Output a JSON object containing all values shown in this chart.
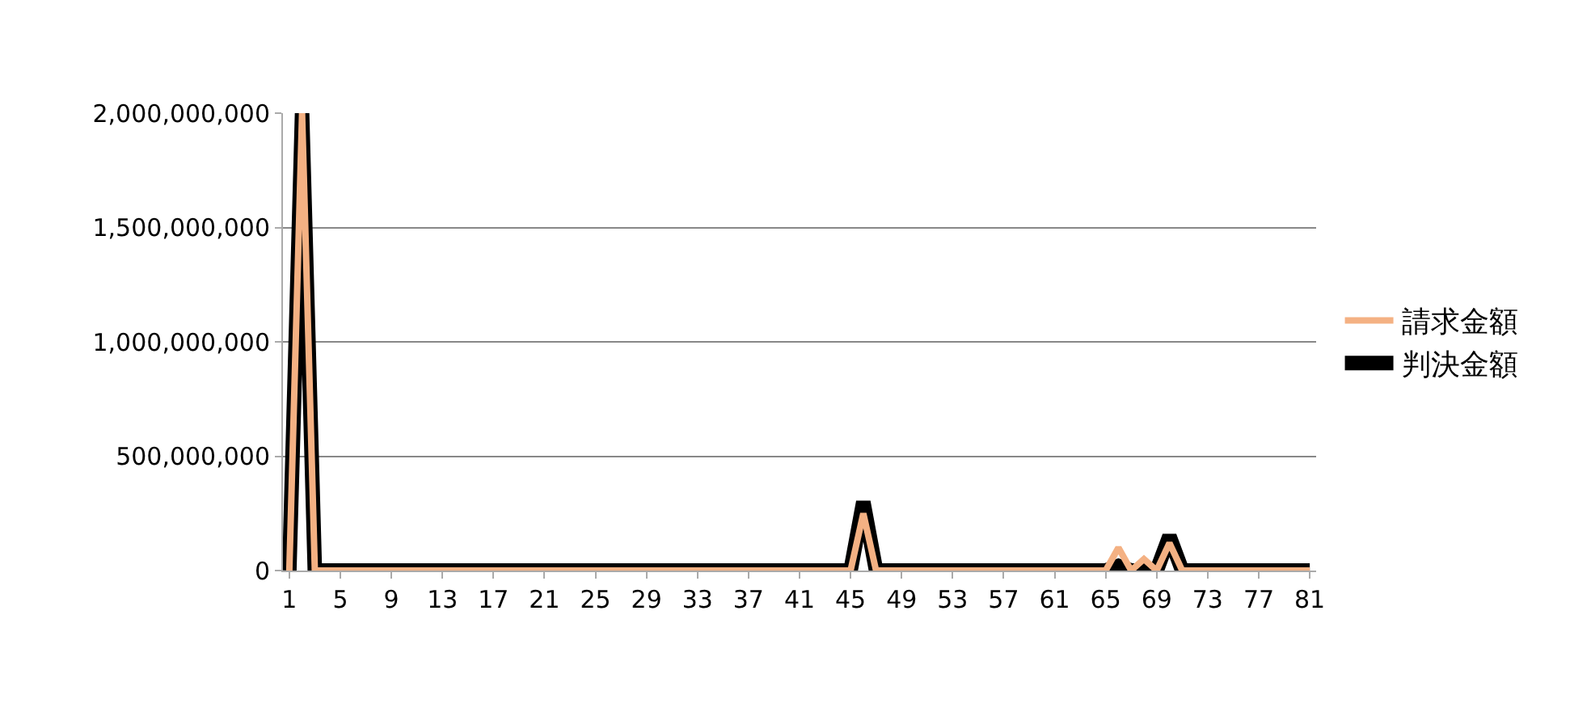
{
  "chart_data": {
    "type": "line",
    "categories": [
      "1",
      null,
      null,
      null,
      "5",
      null,
      null,
      null,
      "9",
      null,
      null,
      null,
      "13",
      null,
      null,
      null,
      "17",
      null,
      null,
      null,
      "21",
      null,
      null,
      null,
      "25",
      null,
      null,
      null,
      "29",
      null,
      null,
      null,
      "33",
      null,
      null,
      null,
      "37",
      null,
      null,
      null,
      "41",
      null,
      null,
      null,
      "45",
      null,
      null,
      null,
      "49",
      null,
      null,
      null,
      "53",
      null,
      null,
      null,
      "57",
      null,
      null,
      null,
      "61",
      null,
      null,
      null,
      "65",
      null,
      null,
      null,
      "69",
      null,
      null,
      null,
      "73",
      null,
      null,
      null,
      "77",
      null,
      null,
      null,
      "81"
    ],
    "series": [
      {
        "name": "請求金額",
        "color": "#f4b183",
        "values": [
          0,
          2000000000,
          0,
          0,
          0,
          0,
          0,
          0,
          0,
          0,
          0,
          0,
          0,
          0,
          0,
          0,
          0,
          0,
          0,
          0,
          0,
          0,
          0,
          0,
          0,
          0,
          0,
          0,
          0,
          0,
          0,
          0,
          0,
          0,
          0,
          0,
          0,
          0,
          0,
          0,
          0,
          0,
          0,
          0,
          0,
          250000000,
          0,
          0,
          0,
          0,
          0,
          0,
          0,
          0,
          0,
          0,
          0,
          0,
          0,
          0,
          0,
          0,
          0,
          0,
          0,
          100000000,
          0,
          50000000,
          0,
          120000000,
          0,
          0,
          0,
          0,
          0,
          0,
          0,
          0,
          0,
          0,
          0
        ]
      },
      {
        "name": "判決金額",
        "color": "#000000",
        "values": [
          0,
          2000000000,
          0,
          0,
          0,
          0,
          0,
          0,
          0,
          0,
          0,
          0,
          0,
          0,
          0,
          0,
          0,
          0,
          0,
          0,
          0,
          0,
          0,
          0,
          0,
          0,
          0,
          0,
          0,
          0,
          0,
          0,
          0,
          0,
          0,
          0,
          0,
          0,
          0,
          0,
          0,
          0,
          0,
          0,
          0,
          300000000,
          0,
          0,
          0,
          0,
          0,
          0,
          0,
          0,
          0,
          0,
          0,
          0,
          0,
          0,
          0,
          0,
          0,
          0,
          0,
          20000000,
          0,
          0,
          0,
          150000000,
          0,
          0,
          0,
          0,
          0,
          0,
          0,
          0,
          0,
          0,
          0
        ]
      }
    ],
    "ylim": [
      0,
      2000000000
    ],
    "yticks": [
      {
        "value": 0,
        "label": "0"
      },
      {
        "value": 500000000,
        "label": "500,000,000"
      },
      {
        "value": 1000000000,
        "label": "1,000,000,000"
      },
      {
        "value": 1500000000,
        "label": "1,500,000,000"
      },
      {
        "value": 2000000000,
        "label": "2,000,000,000"
      }
    ],
    "grid": "y",
    "legend": "right",
    "marker": "none",
    "line_style": "solid"
  }
}
